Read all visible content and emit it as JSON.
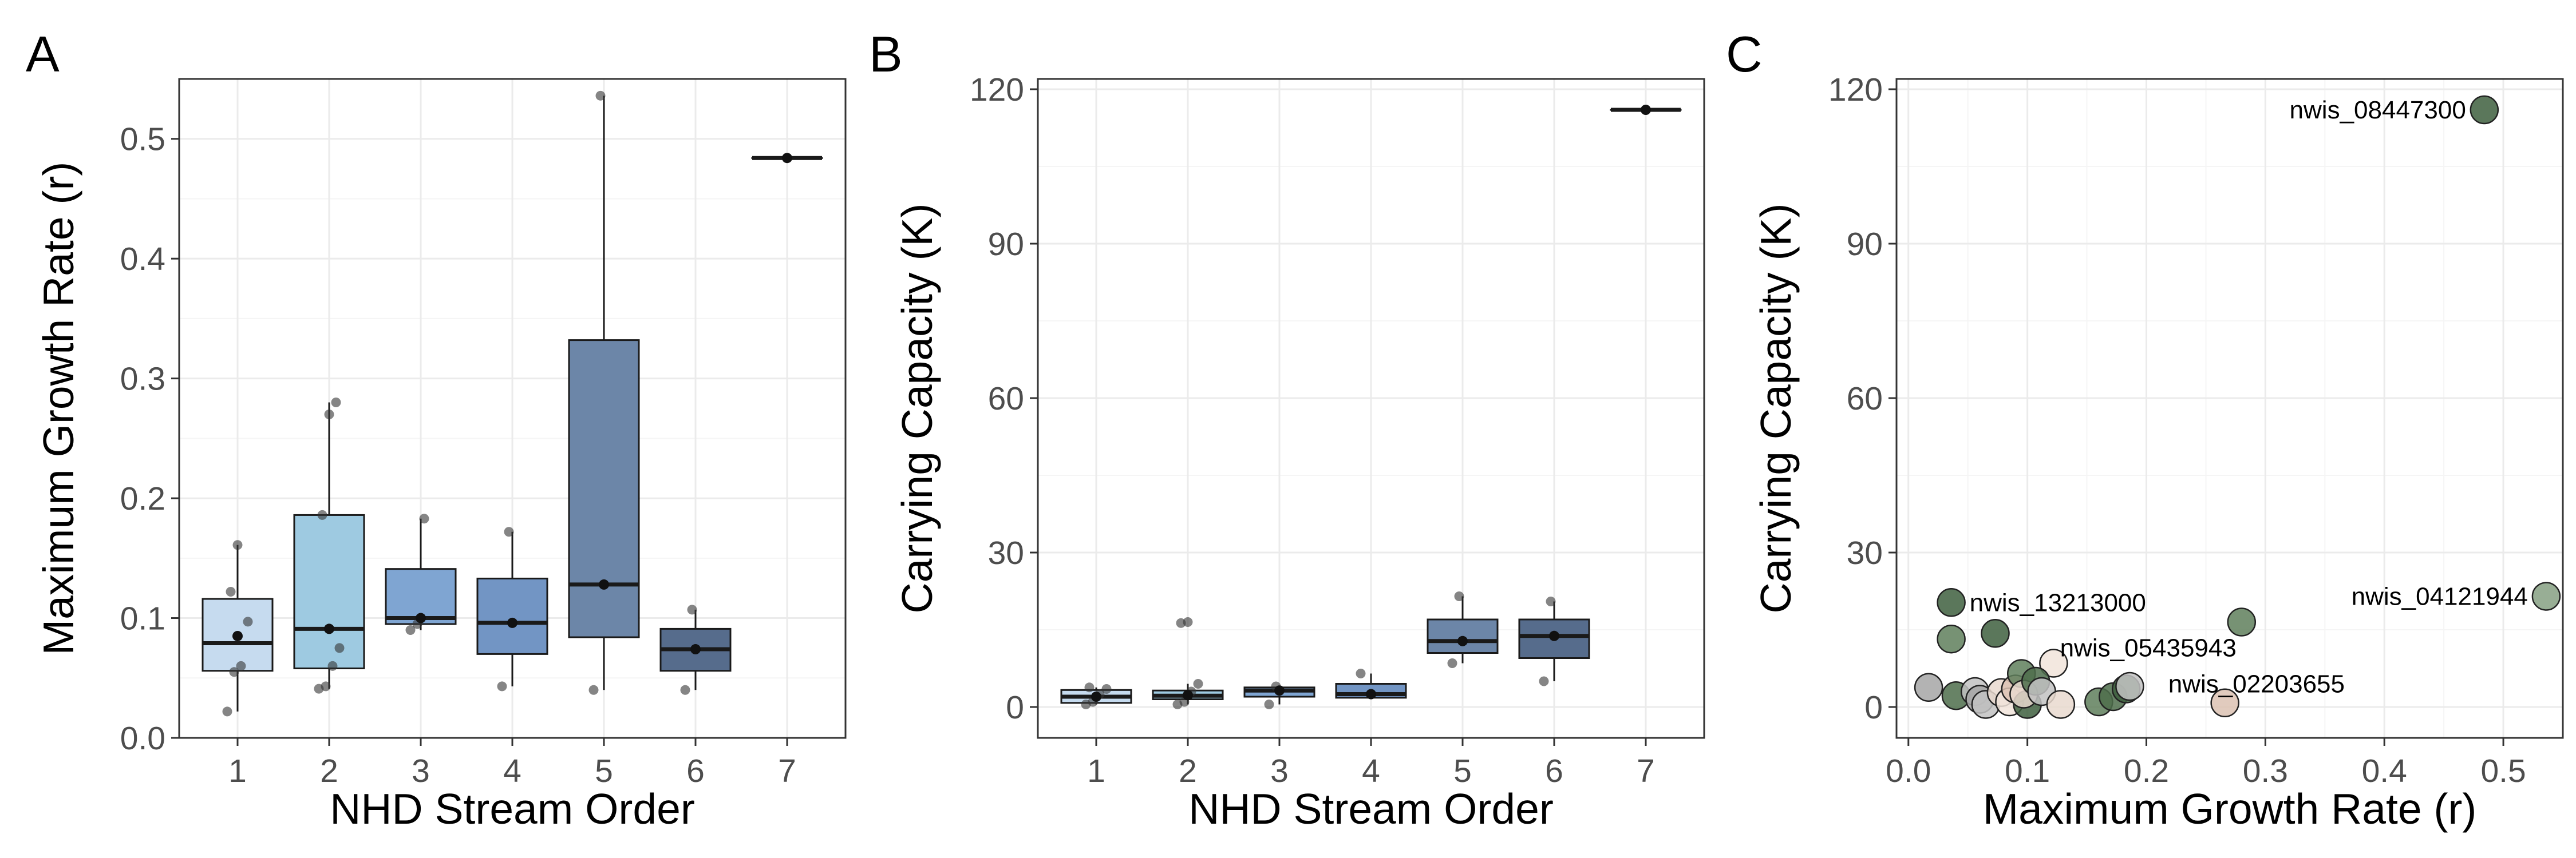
{
  "colors": {
    "panel_border": "#333333",
    "grid_major": "#ebebeb",
    "grid_minor": "#f5f5f5",
    "tick_text": "#4d4d4d",
    "title_text": "#000000",
    "box_border": "#1a1a1a",
    "point": "#333333",
    "order_fills": [
      "#c6dbef",
      "#9ecae1",
      "#7fa5d2",
      "#7295c4",
      "#6c86a8",
      "#566c8c",
      "#4a5a78"
    ],
    "scatter_greens": [
      "#3e5f3e",
      "#4d6d4b",
      "#5f7f5c",
      "#86a083"
    ],
    "scatter_greys": [
      "#a6a6a6",
      "#c2c2c2"
    ],
    "scatter_beige": [
      "#e9d9cf",
      "#dcc2b3",
      "#f1e4da"
    ]
  },
  "chart_data": [
    {
      "type": "box",
      "panel_label": "A",
      "xlabel": "NHD Stream Order",
      "ylabel": "Maximum Growth Rate (r)",
      "ylim": [
        0,
        0.55
      ],
      "yticks": [
        0.0,
        0.1,
        0.2,
        0.3,
        0.4,
        0.5
      ],
      "ytick_labels": [
        "0.0",
        "0.1",
        "0.2",
        "0.3",
        "0.4",
        "0.5"
      ],
      "categories": [
        "1",
        "2",
        "3",
        "4",
        "5",
        "6",
        "7"
      ],
      "boxes": [
        {
          "q1": 0.056,
          "median": 0.079,
          "q3": 0.116,
          "lower": 0.022,
          "upper": 0.161,
          "mean": 0.085,
          "points": [
            0.022,
            0.055,
            0.06,
            0.097,
            0.122,
            0.161
          ]
        },
        {
          "q1": 0.058,
          "median": 0.091,
          "q3": 0.186,
          "lower": 0.041,
          "upper": 0.28,
          "mean": 0.091,
          "points": [
            0.041,
            0.043,
            0.06,
            0.075,
            0.186,
            0.27,
            0.28
          ]
        },
        {
          "q1": 0.095,
          "median": 0.1,
          "q3": 0.141,
          "lower": 0.09,
          "upper": 0.183,
          "mean": 0.1,
          "points": [
            0.09,
            0.095,
            0.183
          ]
        },
        {
          "q1": 0.07,
          "median": 0.096,
          "q3": 0.133,
          "lower": 0.043,
          "upper": 0.172,
          "mean": 0.096,
          "points": [
            0.043,
            0.172
          ]
        },
        {
          "q1": 0.084,
          "median": 0.128,
          "q3": 0.332,
          "lower": 0.04,
          "upper": 0.536,
          "mean": 0.128,
          "points": [
            0.04,
            0.536
          ]
        },
        {
          "q1": 0.056,
          "median": 0.074,
          "q3": 0.091,
          "lower": 0.04,
          "upper": 0.107,
          "mean": 0.074,
          "points": [
            0.04,
            0.107
          ]
        },
        {
          "q1": 0.484,
          "median": 0.484,
          "q3": 0.484,
          "lower": 0.484,
          "upper": 0.484,
          "mean": 0.484,
          "points": []
        }
      ]
    },
    {
      "type": "box",
      "panel_label": "B",
      "xlabel": "NHD Stream Order",
      "ylabel": "Carrying Capacity (K)",
      "ylim": [
        -6,
        122
      ],
      "yticks": [
        0,
        30,
        60,
        90,
        120
      ],
      "ytick_labels": [
        "0",
        "30",
        "60",
        "90",
        "120"
      ],
      "categories": [
        "1",
        "2",
        "3",
        "4",
        "5",
        "6",
        "7"
      ],
      "boxes": [
        {
          "q1": 0.8,
          "median": 2.0,
          "q3": 3.3,
          "lower": 0.5,
          "upper": 3.8,
          "mean": 2.0,
          "points": [
            0.5,
            1.0,
            2.5,
            3.5,
            3.8
          ]
        },
        {
          "q1": 1.5,
          "median": 2.2,
          "q3": 3.2,
          "lower": 0.5,
          "upper": 4.5,
          "mean": 2.3,
          "points": [
            0.5,
            1.0,
            3.0,
            4.5,
            16.3,
            16.5
          ]
        },
        {
          "q1": 2.0,
          "median": 3.2,
          "q3": 3.8,
          "lower": 0.5,
          "upper": 4.0,
          "mean": 3.2,
          "points": [
            0.5,
            4.0
          ]
        },
        {
          "q1": 1.8,
          "median": 2.5,
          "q3": 4.5,
          "lower": 1.5,
          "upper": 6.5,
          "mean": 2.5,
          "points": [
            6.5
          ]
        },
        {
          "q1": 10.5,
          "median": 12.8,
          "q3": 17.0,
          "lower": 8.5,
          "upper": 21.5,
          "mean": 12.8,
          "points": [
            8.5,
            21.5
          ]
        },
        {
          "q1": 9.5,
          "median": 13.8,
          "q3": 17.0,
          "lower": 5.0,
          "upper": 20.5,
          "mean": 13.8,
          "points": [
            5.0,
            20.5
          ]
        },
        {
          "q1": 116,
          "median": 116,
          "q3": 116,
          "lower": 116,
          "upper": 116,
          "mean": 116,
          "points": []
        }
      ]
    },
    {
      "type": "scatter",
      "panel_label": "C",
      "xlabel": "Maximum Growth Rate (r)",
      "ylabel": "Carrying Capacity (K)",
      "xlim": [
        -0.01,
        0.55
      ],
      "ylim": [
        -6,
        122
      ],
      "xticks": [
        0.0,
        0.1,
        0.2,
        0.3,
        0.4,
        0.5
      ],
      "xtick_labels": [
        "0.0",
        "0.1",
        "0.2",
        "0.3",
        "0.4",
        "0.5"
      ],
      "yticks": [
        0,
        30,
        60,
        90,
        120
      ],
      "ytick_labels": [
        "0",
        "30",
        "60",
        "90",
        "120"
      ],
      "points": [
        {
          "x": 0.484,
          "y": 116,
          "tone": "green",
          "shade": 0
        },
        {
          "x": 0.536,
          "y": 21.5,
          "tone": "green",
          "shade": 3
        },
        {
          "x": 0.036,
          "y": 20.3,
          "tone": "green",
          "shade": 0
        },
        {
          "x": 0.28,
          "y": 16.5,
          "tone": "green",
          "shade": 2
        },
        {
          "x": 0.036,
          "y": 13.2,
          "tone": "green",
          "shade": 2
        },
        {
          "x": 0.073,
          "y": 14.3,
          "tone": "green",
          "shade": 0
        },
        {
          "x": 0.122,
          "y": 8.5,
          "tone": "beige",
          "shade": 2
        },
        {
          "x": 0.266,
          "y": 0.8,
          "tone": "beige",
          "shade": 1
        },
        {
          "x": 0.017,
          "y": 3.8,
          "tone": "grey",
          "shade": 0
        },
        {
          "x": 0.04,
          "y": 2.2,
          "tone": "green",
          "shade": 1
        },
        {
          "x": 0.056,
          "y": 3.0,
          "tone": "grey",
          "shade": 1
        },
        {
          "x": 0.06,
          "y": 1.5,
          "tone": "grey",
          "shade": 0
        },
        {
          "x": 0.065,
          "y": 0.5,
          "tone": "grey",
          "shade": 1
        },
        {
          "x": 0.078,
          "y": 2.8,
          "tone": "beige",
          "shade": 0
        },
        {
          "x": 0.085,
          "y": 1.0,
          "tone": "beige",
          "shade": 2
        },
        {
          "x": 0.09,
          "y": 3.5,
          "tone": "beige",
          "shade": 1
        },
        {
          "x": 0.095,
          "y": 6.5,
          "tone": "green",
          "shade": 2
        },
        {
          "x": 0.1,
          "y": 0.5,
          "tone": "green",
          "shade": 0
        },
        {
          "x": 0.097,
          "y": 2.5,
          "tone": "beige",
          "shade": 0
        },
        {
          "x": 0.107,
          "y": 5.0,
          "tone": "green",
          "shade": 1
        },
        {
          "x": 0.112,
          "y": 3.0,
          "tone": "grey",
          "shade": 1
        },
        {
          "x": 0.128,
          "y": 0.5,
          "tone": "beige",
          "shade": 0
        },
        {
          "x": 0.16,
          "y": 1.0,
          "tone": "green",
          "shade": 2
        },
        {
          "x": 0.172,
          "y": 2.0,
          "tone": "green",
          "shade": 1
        },
        {
          "x": 0.183,
          "y": 3.5,
          "tone": "green",
          "shade": 0
        },
        {
          "x": 0.186,
          "y": 4.0,
          "tone": "grey",
          "shade": 1
        }
      ],
      "annotations": [
        {
          "text": "nwis_08447300",
          "x": 0.484,
          "y": 116,
          "anchor": "end"
        },
        {
          "text": "nwis_04121944",
          "x": 0.536,
          "y": 21.5,
          "anchor": "end"
        },
        {
          "text": "nwis_13213000",
          "x": 0.036,
          "y": 20.3,
          "anchor": "start"
        },
        {
          "text": "nwis_05435943",
          "x": 0.112,
          "y": 11.5,
          "anchor": "start"
        },
        {
          "text": "nwis_02203655",
          "x": 0.203,
          "y": 4.5,
          "anchor": "start"
        }
      ]
    }
  ]
}
